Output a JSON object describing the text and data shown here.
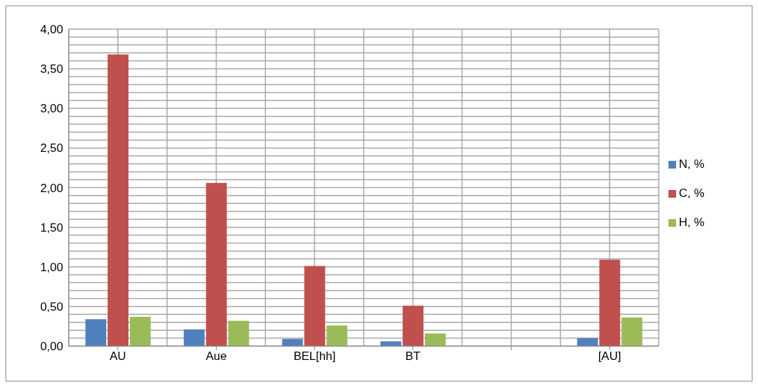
{
  "chart_data": {
    "type": "bar",
    "categories": [
      "AU",
      "Aue",
      "BEL[hh]",
      "BT",
      null,
      "[AU]"
    ],
    "series": [
      {
        "name": "N, %",
        "color": "#4f81bd",
        "values": [
          0.34,
          0.21,
          0.09,
          0.06,
          null,
          0.1
        ]
      },
      {
        "name": "C, %",
        "color": "#c0504d",
        "values": [
          3.68,
          2.06,
          1.01,
          0.51,
          null,
          1.09
        ]
      },
      {
        "name": "H, %",
        "color": "#9bbb59",
        "values": [
          0.37,
          0.32,
          0.26,
          0.16,
          null,
          0.36
        ]
      }
    ],
    "ylim": [
      0,
      4
    ],
    "yticks": [
      {
        "value": 0,
        "label": "0,00"
      },
      {
        "value": 0.1,
        "label": null
      },
      {
        "value": 0.2,
        "label": null
      },
      {
        "value": 0.3,
        "label": null
      },
      {
        "value": 0.4,
        "label": null
      },
      {
        "value": 0.5,
        "label": "0,50"
      },
      {
        "value": 0.6,
        "label": null
      },
      {
        "value": 0.7,
        "label": null
      },
      {
        "value": 0.8,
        "label": null
      },
      {
        "value": 0.9,
        "label": null
      },
      {
        "value": 1,
        "label": "1,00"
      },
      {
        "value": 1.1,
        "label": null
      },
      {
        "value": 1.2,
        "label": null
      },
      {
        "value": 1.3,
        "label": null
      },
      {
        "value": 1.4,
        "label": null
      },
      {
        "value": 1.5,
        "label": "1,50"
      },
      {
        "value": 1.6,
        "label": null
      },
      {
        "value": 1.7,
        "label": null
      },
      {
        "value": 1.8,
        "label": null
      },
      {
        "value": 1.9,
        "label": null
      },
      {
        "value": 2,
        "label": "2,00"
      },
      {
        "value": 2.1,
        "label": null
      },
      {
        "value": 2.2,
        "label": null
      },
      {
        "value": 2.3,
        "label": null
      },
      {
        "value": 2.4,
        "label": null
      },
      {
        "value": 2.5,
        "label": "2,50"
      },
      {
        "value": 2.6,
        "label": null
      },
      {
        "value": 2.7,
        "label": null
      },
      {
        "value": 2.8,
        "label": null
      },
      {
        "value": 2.9,
        "label": null
      },
      {
        "value": 3,
        "label": "3,00"
      },
      {
        "value": 3.1,
        "label": null
      },
      {
        "value": 3.2,
        "label": null
      },
      {
        "value": 3.3,
        "label": null
      },
      {
        "value": 3.4,
        "label": null
      },
      {
        "value": 3.5,
        "label": "3,50"
      },
      {
        "value": 3.6,
        "label": null
      },
      {
        "value": 3.7,
        "label": null
      },
      {
        "value": 3.8,
        "label": null
      },
      {
        "value": 3.9,
        "label": null
      },
      {
        "value": 4,
        "label": "4,00"
      }
    ],
    "grid": true,
    "legend": "right"
  }
}
